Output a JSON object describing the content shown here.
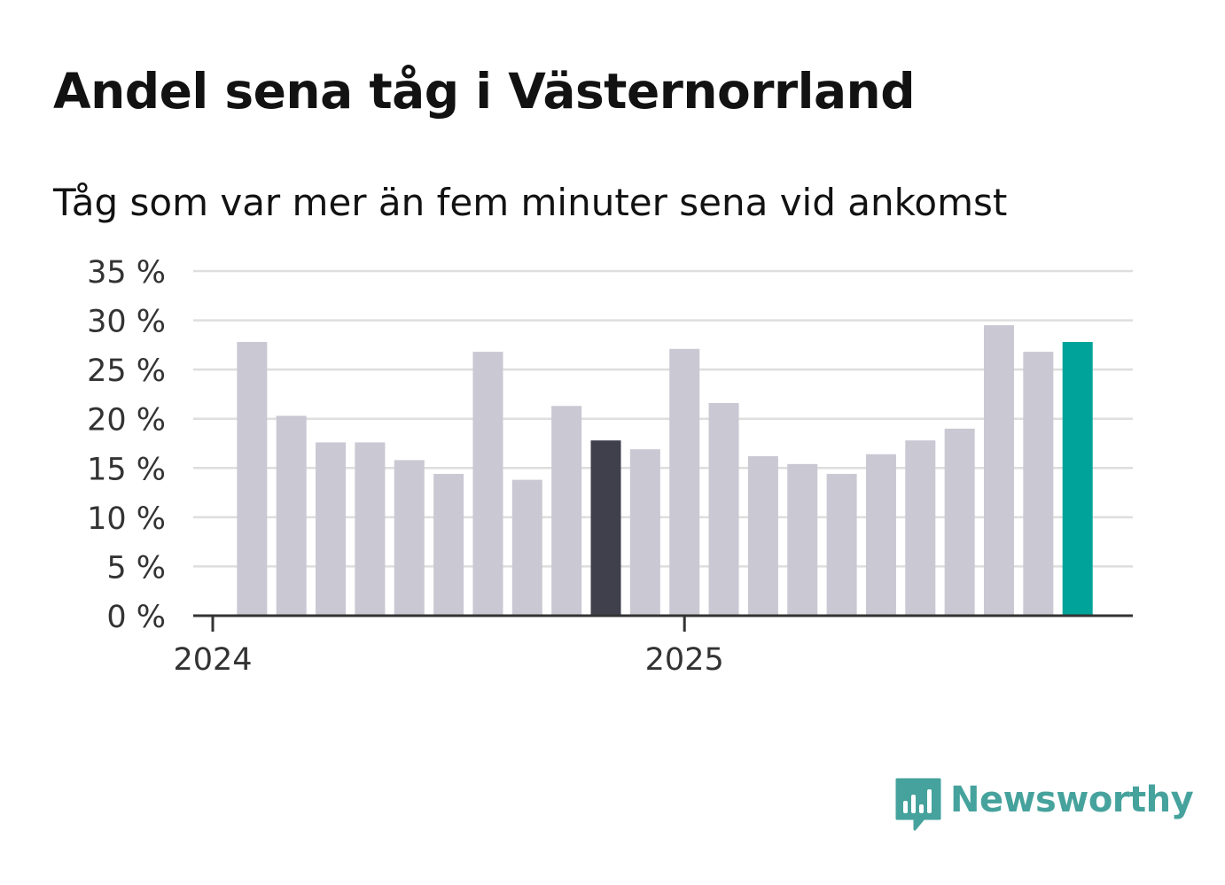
{
  "header": {
    "title": "Andel sena tåg i Västernorrland",
    "subtitle": "Tåg som var mer än fem minuter sena vid ankomst"
  },
  "brand": {
    "name": "Newsworthy",
    "color": "#46a29c"
  },
  "colors": {
    "bar_default": "#c9c8d3",
    "bar_highlight": "#403f4c",
    "bar_latest": "#00a39a",
    "grid": "#dedede",
    "axis": "#333333",
    "text": "#333333"
  },
  "chart_data": {
    "type": "bar",
    "title": "Andel sena tåg i Västernorrland",
    "subtitle": "Tåg som var mer än fem minuter sena vid ankomst",
    "xlabel": "",
    "ylabel": "",
    "unit": "%",
    "ylim": [
      0,
      35
    ],
    "yticks": [
      0,
      5,
      10,
      15,
      20,
      25,
      30,
      35
    ],
    "ytick_labels": [
      "0 %",
      "5 %",
      "10 %",
      "15 %",
      "20 %",
      "25 %",
      "30 %",
      "35 %"
    ],
    "xtick_labels": [
      "2024",
      "2025"
    ],
    "xtick_at_bar_index": [
      0,
      12
    ],
    "grid": true,
    "categories": [
      "2024-01",
      "2024-02",
      "2024-03",
      "2024-04",
      "2024-05",
      "2024-06",
      "2024-07",
      "2024-08",
      "2024-09",
      "2024-10",
      "2024-11",
      "2024-12",
      "2025-01",
      "2025-02",
      "2025-03",
      "2025-04",
      "2025-05",
      "2025-06",
      "2025-07",
      "2025-08",
      "2025-09",
      "2025-10",
      "2025-11"
    ],
    "values": [
      null,
      27.8,
      20.3,
      17.6,
      17.6,
      15.8,
      14.4,
      26.8,
      13.8,
      21.3,
      17.8,
      16.9,
      27.1,
      21.6,
      16.2,
      15.4,
      14.4,
      16.4,
      17.8,
      19.0,
      29.5,
      26.8,
      27.8
    ],
    "highlight_index": 10,
    "latest_index": 22
  }
}
